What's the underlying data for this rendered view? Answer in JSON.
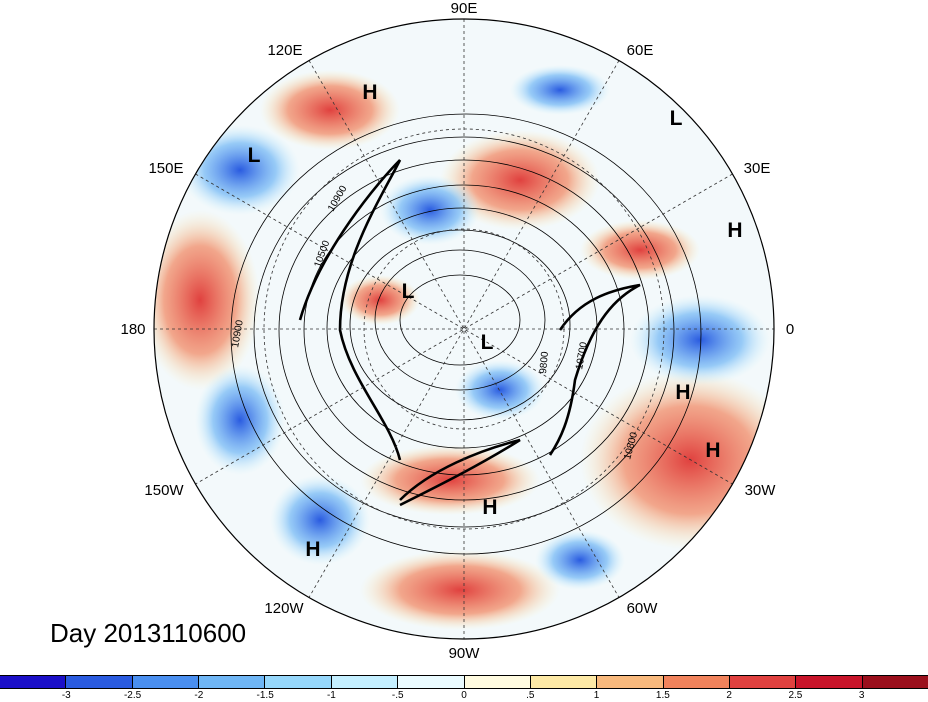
{
  "title": "Day 2013110600",
  "longitude_labels": [
    "90E",
    "60E",
    "30E",
    "0",
    "30W",
    "60W",
    "90W",
    "120W",
    "150W",
    "180",
    "150E",
    "120E"
  ],
  "pressure_centers": [
    "H",
    "L",
    "L",
    "H",
    "L",
    "L",
    "H",
    "H",
    "H",
    "H"
  ],
  "contour_labels": [
    "10900",
    "10500",
    "10900",
    "9800",
    "10700",
    "10800"
  ],
  "colorbar": {
    "ticks": [
      "-3",
      "-2.5",
      "-2",
      "-1.5",
      "-1",
      "-.5",
      "0",
      ".5",
      "1",
      "1.5",
      "2",
      "2.5",
      "3"
    ],
    "colors": [
      "#1b0fc8",
      "#2a5be0",
      "#4a8ff0",
      "#6fb6f5",
      "#96d7fb",
      "#c4efff",
      "#eafbff",
      "#fffbe0",
      "#fde9a6",
      "#f8b97d",
      "#f1835c",
      "#e0413f",
      "#c8142a",
      "#9b0f1c"
    ]
  }
}
